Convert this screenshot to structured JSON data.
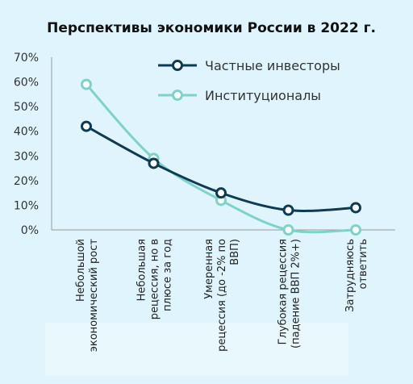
{
  "chart_data": {
    "type": "line",
    "title": "Перспективы экономики России в 2022 г.",
    "categories": [
      "Небольшой экономический рост",
      "Небольшая рецессия, но в плюсе за год",
      "Умеренная рецессия (до -2% по ВВП)",
      "Глубокая рецессия (падение ВВП 2%+)",
      "Затрудняюсь ответить"
    ],
    "category_lines": [
      [
        "Небольшой",
        "экономический рост"
      ],
      [
        "Небольшая",
        "рецессия, но в",
        "плюсе за год"
      ],
      [
        "Умеренная",
        "рецессия (до -2% по",
        "ВВП)"
      ],
      [
        "Глубокая рецессия",
        "(падение ВВП 2%+)"
      ],
      [
        "Затрудняюсь",
        "ответить"
      ]
    ],
    "series": [
      {
        "name": "Частные инвесторы",
        "values": [
          42,
          27,
          15,
          8,
          9
        ],
        "color": "#0f3b52",
        "marker_fill": "#ffffff"
      },
      {
        "name": "Институционалы",
        "values": [
          59,
          29,
          12,
          0,
          0
        ],
        "color": "#7ed3c8",
        "marker_fill": "#ffffff"
      }
    ],
    "yticks": [
      "0%",
      "10%",
      "20%",
      "30%",
      "40%",
      "50%",
      "60%",
      "70%"
    ],
    "ylim": [
      0,
      70
    ],
    "ystep": 10,
    "y_unit": "%",
    "grid": false,
    "smooth": true,
    "legend_position": "top-right"
  }
}
